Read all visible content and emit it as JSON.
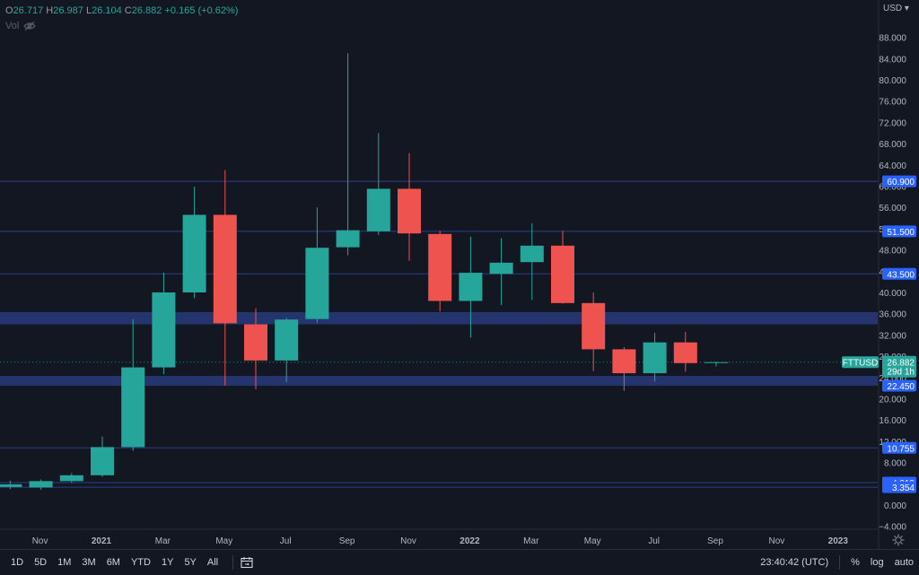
{
  "legend": {
    "open_label": "O",
    "open": "26.717",
    "high_label": "H",
    "high": "26.987",
    "low_label": "L",
    "low": "26.104",
    "close_label": "C",
    "close": "26.882",
    "change": "+0.165 (+0.62%)",
    "vol_label": "Vol"
  },
  "currency": "USD",
  "bottom_bar": {
    "timeframes": [
      "1D",
      "5D",
      "1M",
      "3M",
      "6M",
      "YTD",
      "1Y",
      "5Y",
      "All"
    ],
    "time": "23:40:42 (UTC)",
    "percent": "%",
    "log": "log",
    "auto": "auto"
  },
  "colors": {
    "up": "#26a69a",
    "down": "#ef5350",
    "line": "#2962ff",
    "zone": "#24356e",
    "bg": "#131722"
  },
  "chart_data": {
    "type": "candlestick",
    "symbol": "FTTUSD",
    "timeframe": "1M",
    "x_ticks": [
      "Nov",
      "2021",
      "Mar",
      "May",
      "Jul",
      "Sep",
      "Nov",
      "2022",
      "Mar",
      "May",
      "Jul",
      "Sep",
      "Nov",
      "2023"
    ],
    "y_ticks": [
      "−4.000",
      "0.000",
      "4.000",
      "8.000",
      "12.000",
      "16.000",
      "20.000",
      "24.000",
      "28.000",
      "32.000",
      "36.000",
      "40.000",
      "44.000",
      "48.000",
      "52.000",
      "56.000",
      "60.000",
      "64.000",
      "68.000",
      "72.000",
      "76.000",
      "80.000",
      "84.000",
      "88.000"
    ],
    "ylim": [
      -4.8,
      91
    ],
    "candles": [
      {
        "month": "2020-10",
        "o": 3.4,
        "h": 4.6,
        "l": 3.0,
        "c": 3.9
      },
      {
        "month": "2020-11",
        "o": 3.3,
        "h": 4.8,
        "l": 2.9,
        "c": 4.5
      },
      {
        "month": "2020-12",
        "o": 4.5,
        "h": 6.0,
        "l": 4.2,
        "c": 5.6
      },
      {
        "month": "2021-01",
        "o": 5.6,
        "h": 12.9,
        "l": 5.3,
        "c": 10.9
      },
      {
        "month": "2021-02",
        "o": 10.9,
        "h": 35.0,
        "l": 10.2,
        "c": 25.9
      },
      {
        "month": "2021-03",
        "o": 25.9,
        "h": 43.7,
        "l": 24.6,
        "c": 40.0
      },
      {
        "month": "2021-04",
        "o": 40.0,
        "h": 59.9,
        "l": 38.9,
        "c": 54.6
      },
      {
        "month": "2021-05",
        "o": 54.6,
        "h": 63.0,
        "l": 22.5,
        "c": 34.2
      },
      {
        "month": "2021-06",
        "o": 34.0,
        "h": 37.0,
        "l": 21.8,
        "c": 27.2
      },
      {
        "month": "2021-07",
        "o": 27.2,
        "h": 35.2,
        "l": 23.1,
        "c": 34.9
      },
      {
        "month": "2021-08",
        "o": 35.0,
        "h": 56.0,
        "l": 34.3,
        "c": 48.4
      },
      {
        "month": "2021-09",
        "o": 48.5,
        "h": 85.0,
        "l": 47.0,
        "c": 51.7
      },
      {
        "month": "2021-10",
        "o": 51.5,
        "h": 70.0,
        "l": 50.8,
        "c": 59.5
      },
      {
        "month": "2021-11",
        "o": 59.5,
        "h": 66.2,
        "l": 46.0,
        "c": 51.1
      },
      {
        "month": "2021-12",
        "o": 51.0,
        "h": 51.6,
        "l": 36.4,
        "c": 38.4
      },
      {
        "month": "2022-01",
        "o": 38.4,
        "h": 50.5,
        "l": 31.5,
        "c": 43.7
      },
      {
        "month": "2022-02",
        "o": 43.5,
        "h": 50.2,
        "l": 37.6,
        "c": 45.6
      },
      {
        "month": "2022-03",
        "o": 45.7,
        "h": 53.0,
        "l": 38.6,
        "c": 48.8
      },
      {
        "month": "2022-04",
        "o": 48.8,
        "h": 51.6,
        "l": 37.9,
        "c": 38.0
      },
      {
        "month": "2022-05",
        "o": 38.0,
        "h": 40.0,
        "l": 25.2,
        "c": 29.3
      },
      {
        "month": "2022-06",
        "o": 29.3,
        "h": 29.7,
        "l": 21.5,
        "c": 24.8
      },
      {
        "month": "2022-07",
        "o": 24.8,
        "h": 32.4,
        "l": 23.2,
        "c": 30.6
      },
      {
        "month": "2022-08",
        "o": 30.6,
        "h": 32.6,
        "l": 25.1,
        "c": 26.7
      },
      {
        "month": "2022-09",
        "o": 26.717,
        "h": 26.987,
        "l": 26.104,
        "c": 26.882
      }
    ],
    "horizontal_lines": [
      60.9,
      51.5,
      43.5,
      10.755,
      4.213,
      3.354
    ],
    "zones": [
      [
        34.0,
        36.3
      ],
      [
        22.45,
        24.3
      ]
    ],
    "price_labels": [
      {
        "value": 60.9,
        "text": "60.900"
      },
      {
        "value": 51.5,
        "text": "51.500"
      },
      {
        "value": 43.5,
        "text": "43.500"
      },
      {
        "value": 22.45,
        "text": "22.450"
      },
      {
        "value": 10.755,
        "text": "10.755"
      },
      {
        "value": 4.213,
        "text": "4.213"
      },
      {
        "value": 3.354,
        "text": "3.354"
      }
    ],
    "last_price": {
      "symbol": "FTTUSD",
      "value": 26.882,
      "text": "26.882",
      "countdown": "29d 1h"
    }
  }
}
